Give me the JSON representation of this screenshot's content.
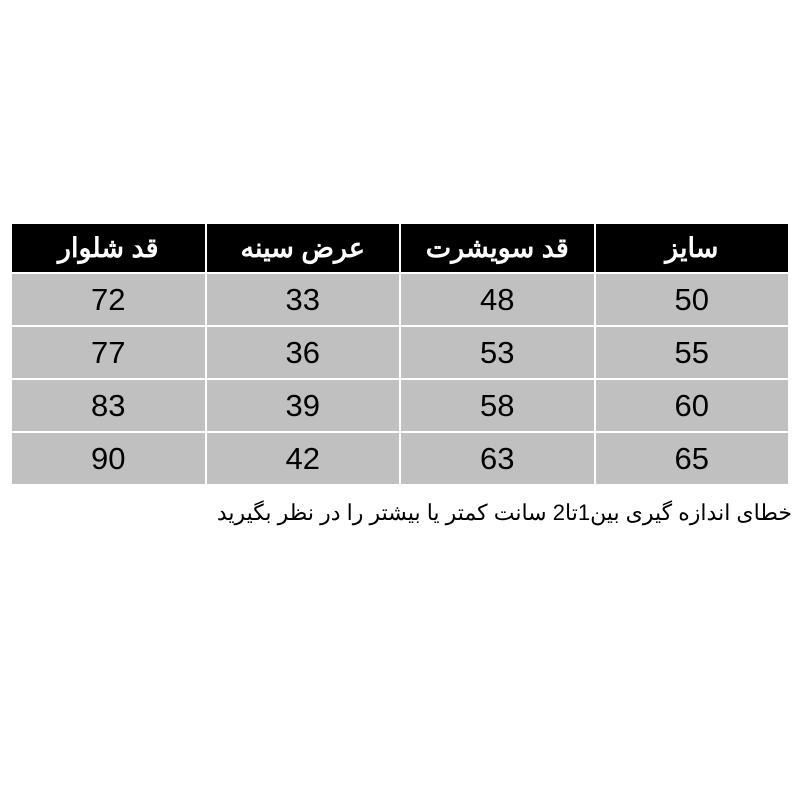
{
  "table": {
    "headers": [
      "سایز",
      "قد سویشرت",
      "عرض سینه",
      "قد شلوار"
    ],
    "rows": [
      [
        "50",
        "48",
        "33",
        "72"
      ],
      [
        "55",
        "53",
        "36",
        "77"
      ],
      [
        "60",
        "58",
        "39",
        "83"
      ],
      [
        "65",
        "63",
        "42",
        "90"
      ]
    ]
  },
  "note": "خطای اندازه گیری بین1تا2 سانت کمتر یا بیشتر را در نظر بگیرید"
}
